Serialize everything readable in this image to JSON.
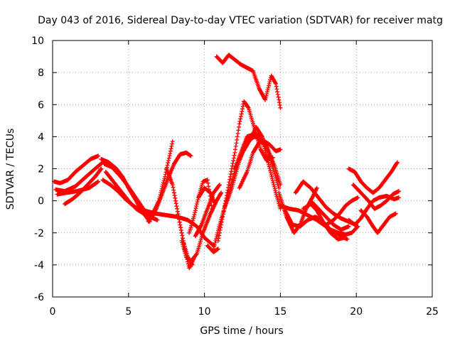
{
  "chart_data": {
    "type": "scatter",
    "title": "Day 043 of 2016, Sidereal Day-to-day VTEC variation (SDTVAR) for receiver matg",
    "xlabel": "GPS time / hours",
    "ylabel": "SDTVAR / TECUs",
    "xlim": [
      0,
      25
    ],
    "ylim": [
      -6,
      10
    ],
    "x_ticks": [
      "0",
      "5",
      "10",
      "15",
      "20",
      "25"
    ],
    "y_ticks": [
      "-6",
      "-4",
      "-2",
      "0",
      "2",
      "4",
      "6",
      "8",
      "10"
    ],
    "grid": true,
    "legend": "none",
    "marker": "plus",
    "color": "#ff0000",
    "series": [
      {
        "x": [
          0.1,
          0.5,
          1.0,
          1.5,
          2.0,
          2.5,
          3.0
        ],
        "y": [
          1.2,
          1.1,
          1.3,
          1.8,
          2.2,
          2.6,
          2.8
        ]
      },
      {
        "x": [
          0.2,
          0.8,
          1.5,
          2.2,
          2.8,
          3.3
        ],
        "y": [
          0.7,
          0.6,
          0.9,
          1.5,
          2.0,
          2.4
        ]
      },
      {
        "x": [
          0.3,
          0.9,
          1.6,
          2.4,
          3.0
        ],
        "y": [
          0.4,
          0.5,
          0.6,
          0.8,
          1.2
        ]
      },
      {
        "x": [
          0.8,
          1.3,
          1.8,
          2.3,
          2.8,
          3.2
        ],
        "y": [
          -0.2,
          0.1,
          0.5,
          1.0,
          1.5,
          2.0
        ]
      },
      {
        "x": [
          3.2,
          3.7,
          4.2,
          4.6,
          5.0,
          5.5,
          6.0,
          6.4
        ],
        "y": [
          2.6,
          2.4,
          2.0,
          1.5,
          0.8,
          0.0,
          -0.8,
          -1.3
        ]
      },
      {
        "x": [
          3.4,
          3.9,
          4.4,
          4.9,
          5.4,
          5.9,
          6.4,
          6.9
        ],
        "y": [
          2.3,
          2.1,
          1.6,
          1.0,
          0.3,
          -0.4,
          -1.0,
          -1.2
        ]
      },
      {
        "x": [
          3.5,
          4.0,
          4.5,
          5.0,
          5.5,
          6.0,
          6.5
        ],
        "y": [
          1.8,
          1.2,
          0.6,
          0.0,
          -0.5,
          -0.8,
          -1.0
        ]
      },
      {
        "x": [
          3.3,
          3.8,
          4.3,
          4.8,
          5.3,
          5.8,
          6.3
        ],
        "y": [
          1.3,
          1.0,
          0.6,
          0.1,
          -0.3,
          -0.6,
          -0.9
        ]
      },
      {
        "x": [
          6.3,
          6.7,
          7.2,
          7.6,
          8.0,
          8.4,
          8.8,
          9.1
        ],
        "y": [
          -1.3,
          -0.8,
          0.4,
          1.4,
          2.3,
          2.9,
          3.0,
          2.8
        ]
      },
      {
        "x": [
          6.5,
          7.0,
          7.4,
          7.7,
          7.9
        ],
        "y": [
          -1.0,
          0.0,
          1.5,
          2.8,
          3.7
        ]
      },
      {
        "x": [
          6.0,
          6.8,
          7.5,
          8.2,
          8.9,
          9.5,
          10.0,
          10.6
        ],
        "y": [
          -0.6,
          -0.8,
          -0.9,
          -1.0,
          -1.2,
          -1.6,
          -2.3,
          -2.8
        ]
      },
      {
        "x": [
          7.5,
          7.9,
          8.3,
          8.6,
          8.9,
          9.2
        ],
        "y": [
          2.0,
          1.0,
          -1.0,
          -2.5,
          -3.5,
          -4.0
        ]
      },
      {
        "x": [
          8.0,
          8.4,
          8.7,
          9.0,
          9.3
        ],
        "y": [
          0.5,
          -1.5,
          -3.0,
          -4.2,
          -3.6
        ]
      },
      {
        "x": [
          8.5,
          8.8,
          9.1,
          9.5,
          9.9,
          10.4,
          10.8,
          11.1
        ],
        "y": [
          -2.5,
          -3.5,
          -3.8,
          -3.3,
          -2.0,
          -0.8,
          0.0,
          0.5
        ]
      },
      {
        "x": [
          9.0,
          9.3,
          9.6,
          9.9,
          10.2,
          10.5
        ],
        "y": [
          -2.0,
          -1.0,
          0.2,
          1.2,
          1.3,
          -0.5
        ]
      },
      {
        "x": [
          9.4,
          9.8,
          10.2,
          10.6,
          11.0
        ],
        "y": [
          -2.2,
          -1.5,
          -0.5,
          0.5,
          1.0
        ]
      },
      {
        "x": [
          9.6,
          10.0,
          10.4,
          10.7
        ],
        "y": [
          0.2,
          0.8,
          0.5,
          -0.2
        ]
      },
      {
        "x": [
          10.2,
          10.6,
          10.9
        ],
        "y": [
          -2.8,
          -3.2,
          -3.0
        ]
      },
      {
        "x": [
          10.6,
          11.0,
          11.6,
          12.2,
          12.8,
          13.4,
          13.9,
          14.3,
          14.7,
          15.0
        ],
        "y": [
          -3.0,
          -1.5,
          0.5,
          2.5,
          4.0,
          4.2,
          3.5,
          2.0,
          0.5,
          -0.5
        ]
      },
      {
        "x": [
          10.9,
          11.3,
          11.7,
          12.0,
          12.3,
          12.6,
          12.9,
          13.3,
          13.7,
          14.1,
          14.5
        ],
        "y": [
          -2.5,
          -0.5,
          1.5,
          3.0,
          4.8,
          6.2,
          5.8,
          4.5,
          3.2,
          2.5,
          2.7
        ]
      },
      {
        "x": [
          11.3,
          11.8,
          12.3,
          12.8,
          13.3,
          13.8,
          14.3,
          14.7,
          15.0
        ],
        "y": [
          -0.5,
          0.8,
          2.5,
          3.7,
          4.0,
          3.8,
          3.5,
          3.1,
          3.2
        ]
      },
      {
        "x": [
          12.0,
          12.5,
          13.0,
          13.4,
          13.8,
          14.2,
          14.6,
          14.9
        ],
        "y": [
          2.0,
          3.0,
          3.8,
          4.6,
          4.0,
          3.0,
          1.8,
          0.8
        ]
      },
      {
        "x": [
          12.3,
          12.8,
          13.2,
          13.7,
          14.1,
          14.6,
          15.0
        ],
        "y": [
          0.8,
          1.8,
          3.0,
          3.8,
          3.4,
          2.2,
          1.0
        ]
      },
      {
        "x": [
          10.8,
          11.2,
          11.6,
          12.0,
          12.4,
          12.8,
          13.2,
          13.6,
          14.0,
          14.4,
          14.7,
          15.0
        ],
        "y": [
          9.0,
          8.6,
          9.1,
          8.8,
          8.5,
          8.3,
          8.1,
          7.0,
          6.3,
          7.8,
          7.3,
          5.8
        ]
      },
      {
        "x": [
          14.9,
          15.4,
          15.9,
          16.3,
          16.7,
          17.1,
          17.4
        ],
        "y": [
          0.5,
          -1.0,
          -2.0,
          -1.5,
          -0.5,
          0.2,
          0.8
        ]
      },
      {
        "x": [
          15.0,
          15.6,
          16.2,
          16.8,
          17.4,
          18.0,
          18.6,
          19.0,
          19.4
        ],
        "y": [
          -0.3,
          -0.5,
          -0.6,
          -0.9,
          -1.2,
          -1.6,
          -2.0,
          -2.2,
          -2.4
        ]
      },
      {
        "x": [
          15.3,
          15.8,
          16.3,
          16.8,
          17.3,
          17.8,
          18.3,
          18.8,
          19.2
        ],
        "y": [
          -0.6,
          -1.5,
          -1.6,
          -1.2,
          -1.0,
          -1.3,
          -2.0,
          -2.4,
          -2.3
        ]
      },
      {
        "x": [
          16.0,
          16.5,
          17.0,
          17.5,
          18.0,
          18.5,
          19.0,
          19.5,
          20.0
        ],
        "y": [
          0.5,
          1.2,
          0.8,
          0.2,
          -0.4,
          -0.8,
          -1.1,
          -1.3,
          -1.5
        ]
      },
      {
        "x": [
          16.5,
          17.0,
          17.4,
          17.8,
          18.3,
          18.8,
          19.3,
          19.7,
          20.1
        ],
        "y": [
          -0.5,
          -0.2,
          -0.6,
          -1.3,
          -1.8,
          -2.0,
          -2.1,
          -2.0,
          -1.6
        ]
      },
      {
        "x": [
          17.0,
          17.5,
          18.0,
          18.5,
          19.0,
          19.5
        ],
        "y": [
          0.0,
          -0.5,
          -1.0,
          -1.5,
          -1.8,
          -1.6
        ]
      },
      {
        "x": [
          18.0,
          18.5,
          18.9,
          19.3,
          19.7,
          20.1
        ],
        "y": [
          -1.5,
          -1.2,
          -0.8,
          -0.3,
          0.0,
          0.2
        ]
      },
      {
        "x": [
          19.5,
          19.9,
          20.3,
          20.7,
          21.1,
          21.5,
          21.9,
          22.3,
          22.7
        ],
        "y": [
          2.0,
          1.8,
          1.2,
          0.8,
          0.5,
          0.8,
          1.3,
          1.8,
          2.4
        ]
      },
      {
        "x": [
          19.8,
          20.3,
          20.8,
          21.2,
          21.6,
          22.0,
          22.4,
          22.8
        ],
        "y": [
          1.0,
          0.5,
          0.0,
          -0.5,
          -0.3,
          0.0,
          0.4,
          0.6
        ]
      },
      {
        "x": [
          20.3,
          20.7,
          21.1,
          21.4,
          21.8,
          22.2,
          22.6
        ],
        "y": [
          -0.6,
          -1.0,
          -1.6,
          -2.0,
          -1.5,
          -1.0,
          -0.8
        ]
      },
      {
        "x": [
          19.5,
          19.9,
          20.3,
          20.7,
          21.1,
          21.5,
          22.0,
          22.5,
          22.8
        ],
        "y": [
          -1.2,
          -1.5,
          -1.1,
          -0.5,
          0.0,
          0.2,
          0.3,
          0.1,
          0.2
        ]
      }
    ]
  }
}
